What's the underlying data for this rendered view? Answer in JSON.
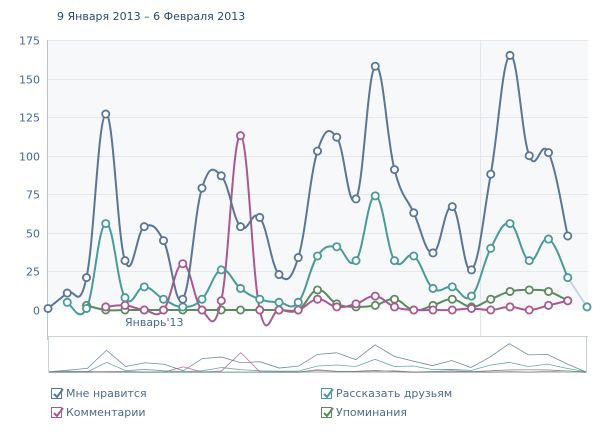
{
  "header": {
    "date_range": "9 Января 2013 – 6 Февраля 2013"
  },
  "chart_data": {
    "type": "line",
    "title": "9 Января 2013 – 6 Февраля 2013",
    "xlabel": "",
    "ylabel": "",
    "ylim": [
      0,
      175
    ],
    "yticks": [
      0,
      25,
      50,
      75,
      100,
      125,
      150,
      175
    ],
    "grid": true,
    "x_label_annotation": "Январь'13",
    "x_label_annotation_index": 4,
    "month_separator_after_index": 22.5,
    "points": 29,
    "projected_last_point": true,
    "series": [
      {
        "name": "Мне нравится",
        "color": "#5b7594",
        "values": [
          1,
          11,
          21,
          127,
          32,
          54,
          45,
          7,
          79,
          87,
          54,
          60,
          23,
          34,
          103,
          112,
          72,
          158,
          91,
          63,
          37,
          67,
          26,
          88,
          165,
          100,
          102,
          48,
          null
        ]
      },
      {
        "name": "Рассказать друзьям",
        "color": "#4a9a98",
        "values": [
          null,
          5,
          1,
          56,
          8,
          15,
          7,
          2,
          7,
          26,
          14,
          7,
          5,
          5,
          35,
          41,
          32,
          74,
          32,
          35,
          14,
          15,
          9,
          40,
          56,
          32,
          46,
          21,
          2
        ]
      },
      {
        "name": "Комментарии",
        "color": "#a85a8f",
        "values": [
          null,
          null,
          null,
          2,
          3,
          0,
          0,
          30,
          0,
          6,
          113,
          0,
          0,
          0,
          7,
          2,
          4,
          9,
          2,
          0,
          0,
          0,
          1,
          0,
          2,
          0,
          3,
          6,
          null
        ]
      },
      {
        "name": "Упоминания",
        "color": "#5b8a5e",
        "values": [
          null,
          null,
          3,
          0,
          0,
          0,
          0,
          0,
          0,
          0,
          0,
          0,
          0,
          0,
          13,
          4,
          2,
          3,
          7,
          0,
          3,
          7,
          2,
          7,
          12,
          13,
          12,
          6,
          null
        ]
      }
    ]
  },
  "legend": [
    {
      "label": "Мне нравится",
      "checked": true,
      "color": "#5b7594"
    },
    {
      "label": "Комментарии",
      "checked": true,
      "color": "#a85a8f"
    },
    {
      "label": "Рассказать друзьям",
      "checked": true,
      "color": "#4a9a98"
    },
    {
      "label": "Упоминания",
      "checked": true,
      "color": "#5b8a5e"
    }
  ]
}
